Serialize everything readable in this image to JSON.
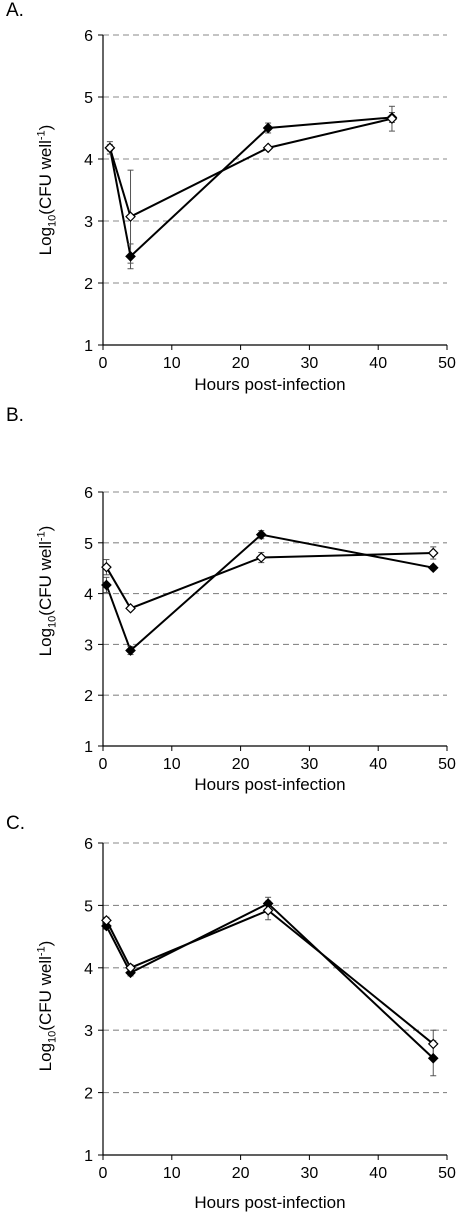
{
  "chart_data": [
    {
      "type": "line",
      "panel_label": "A.",
      "xlabel": "Hours post-infection",
      "ylabel": {
        "prefix": "Log",
        "sub": "10",
        "middle": "(CFU well",
        "sup": "-1",
        "suffix": ")"
      },
      "xlim": [
        0,
        50
      ],
      "ylim": [
        1,
        6
      ],
      "xticks": [
        0,
        10,
        20,
        30,
        40,
        50
      ],
      "yticks": [
        1,
        2,
        3,
        4,
        5,
        6
      ],
      "grid": "horizontal dashed",
      "series": [
        {
          "marker": "filled-diamond",
          "color": "#000000",
          "x": [
            1,
            4,
            24,
            42
          ],
          "y": [
            4.18,
            2.43,
            4.5,
            4.67
          ],
          "err": [
            0.1,
            0.2,
            0.08,
            0.08
          ]
        },
        {
          "marker": "open-diamond",
          "color": "#000000",
          "x": [
            1,
            4,
            24,
            42
          ],
          "y": [
            4.18,
            3.07,
            4.18,
            4.65
          ],
          "err": [
            0.05,
            0.75,
            0.0,
            0.2
          ]
        }
      ]
    },
    {
      "type": "line",
      "panel_label": "B.",
      "xlabel": "Hours post-infection",
      "ylabel": {
        "prefix": "Log",
        "sub": "10",
        "middle": "(CFU well",
        "sup": "-1",
        "suffix": ")"
      },
      "xlim": [
        0,
        50
      ],
      "ylim": [
        1,
        6
      ],
      "xticks": [
        0,
        10,
        20,
        30,
        40,
        50
      ],
      "yticks": [
        1,
        2,
        3,
        4,
        5,
        6
      ],
      "grid": "horizontal dashed",
      "series": [
        {
          "marker": "filled-diamond",
          "color": "#000000",
          "x": [
            0.5,
            4,
            23,
            48
          ],
          "y": [
            4.17,
            2.88,
            5.16,
            4.51
          ],
          "err": [
            0.15,
            0.08,
            0.08,
            0.04
          ]
        },
        {
          "marker": "open-diamond",
          "color": "#000000",
          "x": [
            0.5,
            4,
            23,
            48
          ],
          "y": [
            4.52,
            3.71,
            4.71,
            4.8
          ],
          "err": [
            0.15,
            0.0,
            0.1,
            0.12
          ]
        }
      ]
    },
    {
      "type": "line",
      "panel_label": "C.",
      "xlabel": "Hours post-infection",
      "ylabel": {
        "prefix": "Log",
        "sub": "10",
        "middle": "(CFU well",
        "sup": "-1",
        "suffix": ")"
      },
      "xlim": [
        0,
        50
      ],
      "ylim": [
        1,
        6
      ],
      "xticks": [
        0,
        10,
        20,
        30,
        40,
        50
      ],
      "yticks": [
        1,
        2,
        3,
        4,
        5,
        6
      ],
      "grid": "horizontal dashed",
      "series": [
        {
          "marker": "filled-diamond",
          "color": "#000000",
          "x": [
            0.5,
            4,
            24,
            48
          ],
          "y": [
            4.67,
            3.92,
            5.03,
            2.55
          ],
          "err": [
            0.05,
            0.05,
            0.1,
            0.28
          ]
        },
        {
          "marker": "open-diamond",
          "color": "#000000",
          "x": [
            0.5,
            4,
            24,
            48
          ],
          "y": [
            4.76,
            4.0,
            4.92,
            2.78
          ],
          "err": [
            0.05,
            0.05,
            0.15,
            0.22
          ]
        }
      ]
    }
  ]
}
